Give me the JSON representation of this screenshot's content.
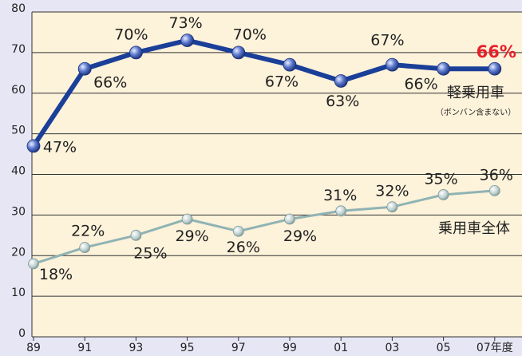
{
  "chart_data": {
    "type": "line",
    "categories": [
      "89",
      "91",
      "93",
      "95",
      "97",
      "99",
      "01",
      "03",
      "05",
      "07年度"
    ],
    "series": [
      {
        "name": "軽乗用車",
        "color": "#1a3f99",
        "values": [
          47,
          66,
          70,
          73,
          70,
          67,
          63,
          67,
          66,
          66
        ],
        "value_labels": [
          "47%",
          "66%",
          "70%",
          "73%",
          "70%",
          "67%",
          "63%",
          "67%",
          "66%",
          "66%"
        ]
      },
      {
        "name": "乗用車全体",
        "color": "#8fb3b3",
        "values": [
          18,
          22,
          25,
          29,
          26,
          29,
          31,
          32,
          35,
          36
        ],
        "value_labels": [
          "18%",
          "22%",
          "25%",
          "29%",
          "26%",
          "29%",
          "31%",
          "32%",
          "35%",
          "36%"
        ]
      }
    ],
    "annotations": [
      "（ボンバン含まない）"
    ],
    "ylim": [
      0,
      80
    ],
    "yticks": [
      0,
      10,
      20,
      30,
      40,
      50,
      60,
      70,
      80
    ],
    "grid": true
  }
}
